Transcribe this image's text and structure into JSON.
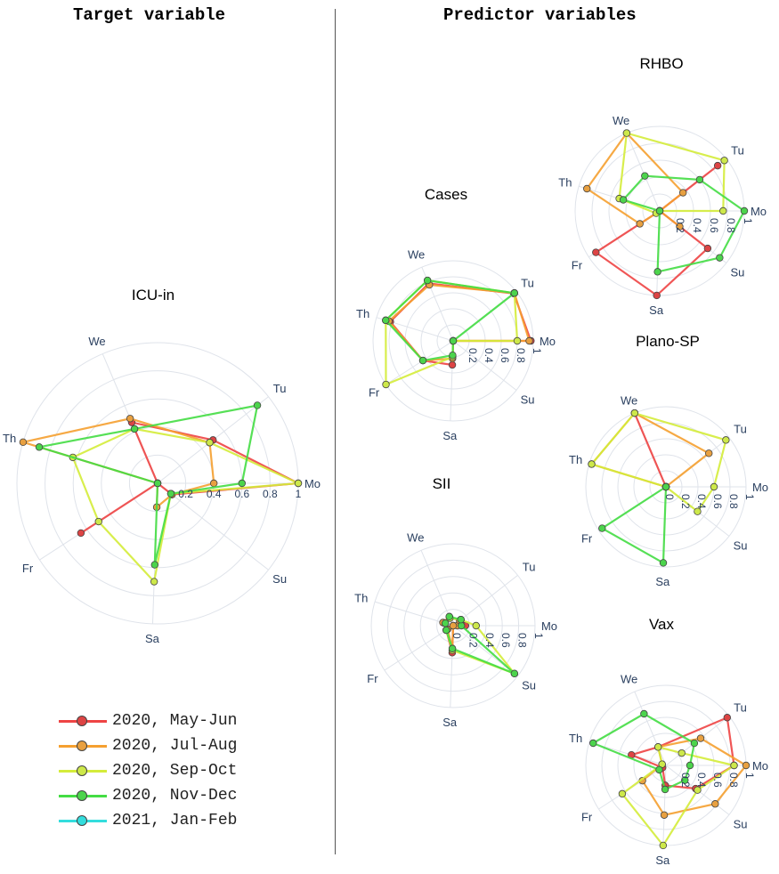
{
  "headers": {
    "left": "Target variable",
    "right": "Predictor variables"
  },
  "colors": {
    "grid": "#dfe3ea",
    "series": [
      "#ee4444",
      "#f5a030",
      "#d4ec3a",
      "#44dd44",
      "#33dddd"
    ],
    "marker_fill": [
      "#dd4444",
      "#e8a040",
      "#cde84a",
      "#4cd44c",
      "#33dddd"
    ]
  },
  "legend": [
    "2020, May-Jun",
    "2020, Jul-Aug",
    "2020, Sep-Oct",
    "2020, Nov-Dec",
    "2021, Jan-Feb"
  ],
  "chart_data": [
    {
      "type": "radar",
      "title": "ICU-in",
      "theta": [
        "Mo",
        "Tu",
        "We",
        "Th",
        "Fr",
        "Sa",
        "Su"
      ],
      "radial_ticks": [
        "0",
        "0.2",
        "0.4",
        "0.6",
        "0.8",
        "1"
      ],
      "show_tick_labels": [
        "0.2",
        "0.4",
        "0.6",
        "0.8",
        "1"
      ],
      "rrange": [
        0,
        1
      ],
      "series": [
        {
          "name": "2020, May-Jun",
          "values": [
            1.0,
            0.5,
            0.47,
            0.0,
            0.65,
            0.0,
            0.13
          ]
        },
        {
          "name": "2020, Jul-Aug",
          "values": [
            0.4,
            0.47,
            0.5,
            1.0,
            0.0,
            0.17,
            0.13
          ]
        },
        {
          "name": "2020, Sep-Oct",
          "values": [
            1.0,
            0.47,
            0.42,
            0.63,
            0.5,
            0.7,
            0.12
          ]
        },
        {
          "name": "2020, Nov-Dec",
          "values": [
            0.6,
            0.9,
            0.42,
            0.88,
            0.0,
            0.58,
            0.12
          ]
        }
      ]
    },
    {
      "type": "radar",
      "title": "Cases",
      "theta": [
        "Mo",
        "Tu",
        "We",
        "Th",
        "Fr",
        "Sa",
        "Su"
      ],
      "radial_ticks": [
        "0",
        "0.2",
        "0.4",
        "0.6",
        "0.8",
        "1"
      ],
      "show_tick_labels": [
        "0.2",
        "0.4",
        "0.6",
        "0.8",
        "1"
      ],
      "rrange": [
        0,
        1
      ],
      "series": [
        {
          "name": "2020, May-Jun",
          "values": [
            0.97,
            0.96,
            0.78,
            0.82,
            0.45,
            0.3,
            0.0
          ]
        },
        {
          "name": "2020, Jul-Aug",
          "values": [
            0.95,
            0.97,
            0.76,
            0.84,
            0.45,
            0.22,
            0.0
          ]
        },
        {
          "name": "2020, Sep-Oct",
          "values": [
            0.8,
            0.97,
            0.82,
            0.88,
            1.0,
            0.2,
            0.0
          ]
        },
        {
          "name": "2020, Nov-Dec",
          "values": [
            0.0,
            0.97,
            0.82,
            0.88,
            0.45,
            0.18,
            0.0
          ]
        }
      ]
    },
    {
      "type": "radar",
      "title": "SII",
      "theta": [
        "Mo",
        "Tu",
        "We",
        "Th",
        "Fr",
        "Sa",
        "Su"
      ],
      "radial_ticks": [
        "0",
        "0.2",
        "0.4",
        "0.6",
        "0.8",
        "1"
      ],
      "show_tick_labels": [
        "0",
        "0.2",
        "0.4",
        "0.6",
        "0.8",
        "1"
      ],
      "rrange": [
        0,
        1
      ],
      "series": [
        {
          "name": "2020, May-Jun",
          "values": [
            0.15,
            0.12,
            0.1,
            0.12,
            0.1,
            0.33,
            0.0
          ]
        },
        {
          "name": "2020, Jul-Aug",
          "values": [
            0.05,
            0.1,
            0.12,
            0.13,
            0.08,
            0.28,
            0.0
          ]
        },
        {
          "name": "2020, Sep-Oct",
          "values": [
            0.28,
            0.12,
            0.1,
            0.1,
            0.1,
            0.3,
            0.95
          ]
        },
        {
          "name": "2020, Nov-Dec",
          "values": [
            0.1,
            0.12,
            0.12,
            0.1,
            0.1,
            0.28,
            0.95
          ]
        }
      ]
    },
    {
      "type": "radar",
      "title": "RHBO",
      "theta": [
        "Mo",
        "Tu",
        "We",
        "Th",
        "Fr",
        "Sa",
        "Su"
      ],
      "radial_ticks": [
        "0",
        "0.2",
        "0.4",
        "0.6",
        "0.8",
        "1"
      ],
      "show_tick_labels": [
        "0.2",
        "0.4",
        "0.6",
        "0.8",
        "1"
      ],
      "rrange": [
        0,
        1
      ],
      "series": [
        {
          "name": "2020, May-Jun",
          "values": [
            0.0,
            0.87,
            0.0,
            0.0,
            0.9,
            1.0,
            0.72
          ]
        },
        {
          "name": "2020, Jul-Aug",
          "values": [
            0.0,
            0.35,
            1.0,
            0.9,
            0.28,
            0.0,
            0.3
          ]
        },
        {
          "name": "2020, Sep-Oct",
          "values": [
            0.75,
            0.97,
            1.0,
            0.5,
            0.05,
            0.0,
            0.0
          ]
        },
        {
          "name": "2020, Nov-Dec",
          "values": [
            1.0,
            0.6,
            0.45,
            0.45,
            0.0,
            0.72,
            0.9
          ]
        }
      ]
    },
    {
      "type": "radar",
      "title": "Plano-SP",
      "theta": [
        "Mo",
        "Tu",
        "We",
        "Th",
        "Fr",
        "Sa",
        "Su"
      ],
      "radial_ticks": [
        "0",
        "0.2",
        "0.4",
        "0.6",
        "0.8",
        "1"
      ],
      "show_tick_labels": [
        "0",
        "0.2",
        "0.4",
        "0.6",
        "0.8",
        "1"
      ],
      "rrange": [
        0,
        1
      ],
      "series": [
        {
          "name": "2020, May-Jun",
          "values": [
            0.0,
            0.0,
            1.0,
            0.0,
            0.0,
            0.0,
            0.0
          ]
        },
        {
          "name": "2020, Jul-Aug",
          "values": [
            0.0,
            0.68,
            1.0,
            0.97,
            0.0,
            0.0,
            0.0
          ]
        },
        {
          "name": "2020, Sep-Oct",
          "values": [
            0.6,
            0.95,
            1.0,
            0.97,
            0.0,
            0.0,
            0.5
          ]
        },
        {
          "name": "2020, Nov-Dec",
          "values": [
            0.0,
            0.0,
            0.0,
            0.0,
            0.95,
            0.95,
            0.0
          ]
        }
      ]
    },
    {
      "type": "radar",
      "title": "Vax",
      "theta": [
        "Mo",
        "Tu",
        "We",
        "Th",
        "Fr",
        "Sa",
        "Su"
      ],
      "radial_ticks": [
        "0",
        "0.2",
        "0.4",
        "0.6",
        "0.8",
        "1"
      ],
      "show_tick_labels": [
        "0.2",
        "0.4",
        "0.6",
        "0.8",
        "1"
      ],
      "rrange": [
        0,
        1
      ],
      "series": [
        {
          "name": "2020, May-Jun",
          "values": [
            0.85,
            0.97,
            0.25,
            0.45,
            0.05,
            0.25,
            0.47
          ]
        },
        {
          "name": "2020, Jul-Aug",
          "values": [
            1.0,
            0.55,
            0.25,
            0.05,
            0.35,
            0.62,
            0.78
          ]
        },
        {
          "name": "2020, Sep-Oct",
          "values": [
            0.85,
            0.25,
            0.25,
            0.05,
            0.65,
            1.0,
            0.5
          ]
        },
        {
          "name": "2020, Nov-Dec",
          "values": [
            0.3,
            0.45,
            0.7,
            0.95,
            0.1,
            0.3,
            0.3
          ]
        }
      ]
    }
  ]
}
